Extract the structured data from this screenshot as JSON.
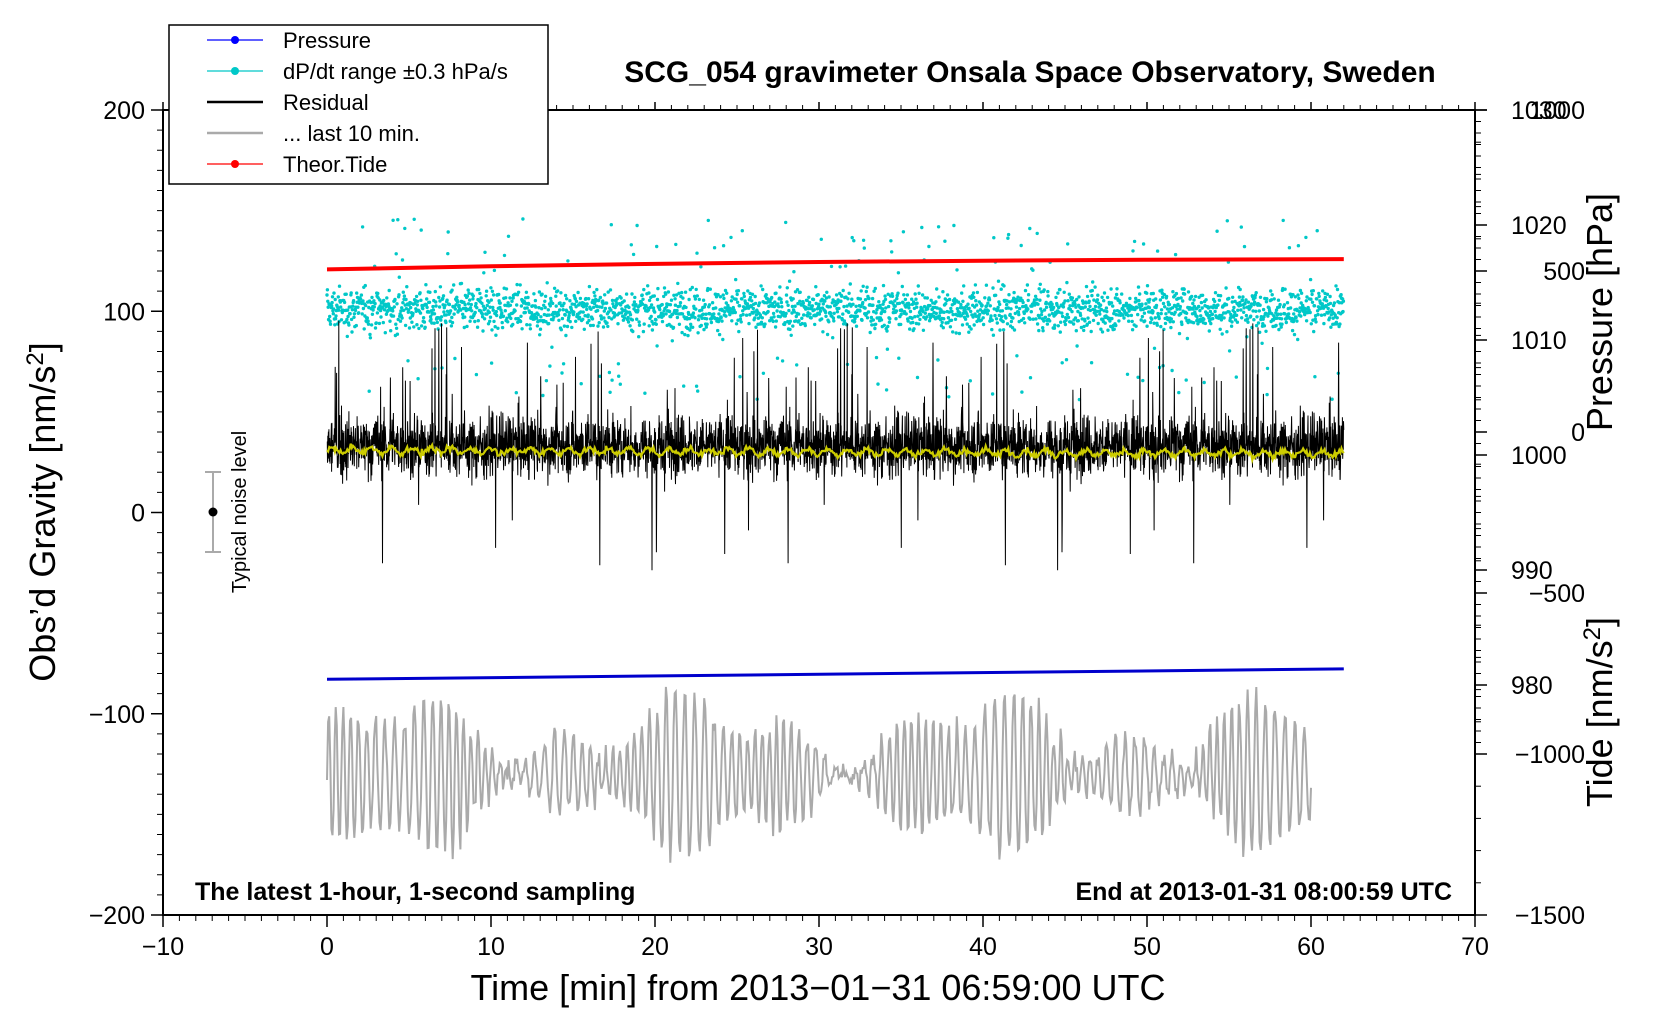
{
  "chart_data": {
    "type": "line",
    "title": "SCG_054 gravimeter Onsala Space Observatory, Sweden",
    "xlabel": "Time [min] from 2013−01−31 06:59:00 UTC",
    "ylabel_left": "Obs’d Gravity [nm/s²]",
    "ylabel_left_parts": [
      "Obs’d Gravity [nm/s",
      "2",
      "]"
    ],
    "ylabel_right_pressure": "Pressure [hPa]",
    "ylabel_right_tide": "Tide [nm/s²]",
    "ylabel_right_tide_parts": [
      "Tide [nm/s",
      "2",
      "]"
    ],
    "xlim": [
      -10,
      70
    ],
    "ylim_left": [
      -200,
      200
    ],
    "pressure_range": [
      960,
      1030
    ],
    "tide_range": [
      -1500,
      1000
    ],
    "x_ticks": [
      -10,
      0,
      10,
      20,
      30,
      40,
      50,
      60,
      70
    ],
    "x_tick_labels": [
      "−10",
      "0",
      "10",
      "20",
      "30",
      "40",
      "50",
      "60",
      "70"
    ],
    "y_left_ticks": [
      -200,
      -100,
      0,
      100,
      200
    ],
    "y_left_tick_labels": [
      "−200",
      "−100",
      "0",
      "100",
      "200"
    ],
    "pressure_ticks": [
      980,
      990,
      1000,
      1010,
      1020,
      1030
    ],
    "pressure_tick_labels": [
      "980",
      "990",
      "1000",
      "1010",
      "1020",
      "1030"
    ],
    "tide_ticks": [
      -1500,
      -1000,
      -500,
      0,
      500,
      1000
    ],
    "tide_tick_labels": [
      "−1500",
      "−1000",
      "−500",
      "0",
      "500",
      "1000"
    ],
    "legend": {
      "placement": "top-left",
      "entries": [
        {
          "label": "Pressure",
          "color": "#0000ff",
          "style": "line-dot"
        },
        {
          "label": "dP/dt range ±0.3 hPa/s",
          "color": "#00c8c8",
          "style": "line-dot"
        },
        {
          "label": "Residual",
          "color": "#000000",
          "style": "line"
        },
        {
          "label": "... last 10 min.",
          "color": "#aaaaaa",
          "style": "line"
        },
        {
          "label": "Theor.Tide",
          "color": "#ff0000",
          "style": "line-dot"
        }
      ]
    },
    "annotations": {
      "left": "The latest 1-hour, 1-second sampling",
      "right": "End at 2013-01-31 08:00:59 UTC",
      "noise": "Typical noise level"
    },
    "noise_bar": {
      "x": -7,
      "center": 0,
      "half_range": 20
    },
    "series": [
      {
        "name": "Pressure",
        "color": "#0000cc",
        "axis": "pressure",
        "x": [
          0,
          62
        ],
        "values": [
          980.5,
          981.4
        ]
      },
      {
        "name": "dP/dt range ±0.3 hPa/s",
        "color": "#00c8c8",
        "axis": "left",
        "x_range": [
          0,
          62
        ],
        "center": 101,
        "spread": 45,
        "type": "scatter"
      },
      {
        "name": "Residual",
        "color": "#000000",
        "axis": "left",
        "x_range": [
          0,
          62
        ],
        "center": 33,
        "spread": 70
      },
      {
        "name": "Smoothed residual",
        "color": "#cccc00",
        "axis": "left",
        "x_range": [
          0,
          62
        ],
        "center": 31,
        "spread": 4
      },
      {
        "name": "... last 10 min.",
        "color": "#aaaaaa",
        "axis": "left",
        "x_range": [
          0,
          60
        ],
        "center": -130,
        "spread": 60
      },
      {
        "name": "Theor.Tide",
        "color": "#ff0000",
        "axis": "tide",
        "x": [
          0,
          10,
          20,
          30,
          40,
          50,
          62
        ],
        "values": [
          505,
          515,
          522,
          528,
          532,
          535,
          537
        ]
      }
    ]
  }
}
